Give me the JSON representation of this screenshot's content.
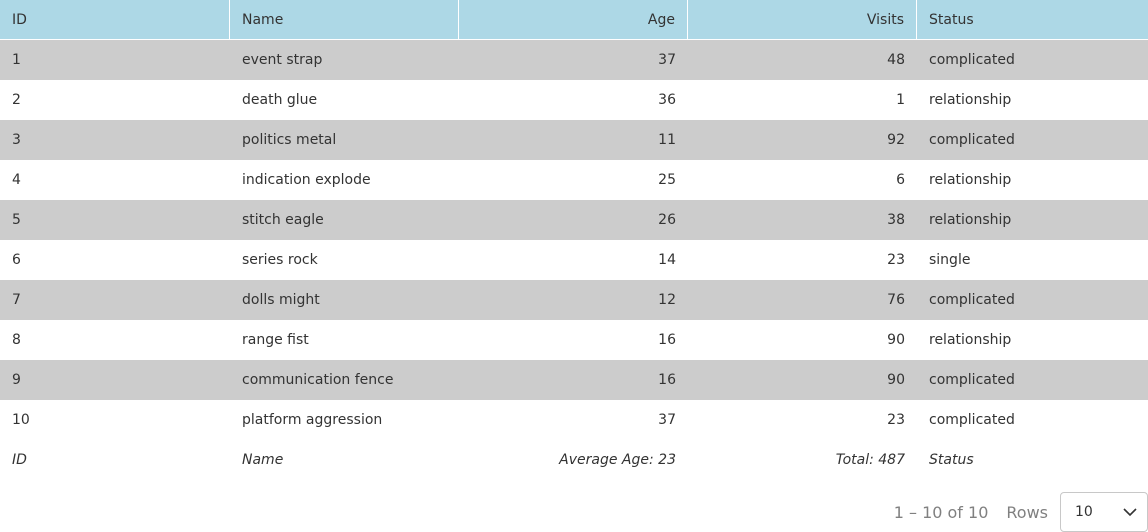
{
  "table": {
    "columns": [
      "ID",
      "Name",
      "Age",
      "Visits",
      "Status"
    ],
    "rows": [
      [
        "1",
        "event strap",
        "37",
        "48",
        "complicated"
      ],
      [
        "2",
        "death glue",
        "36",
        "1",
        "relationship"
      ],
      [
        "3",
        "politics metal",
        "11",
        "92",
        "complicated"
      ],
      [
        "4",
        "indication explode",
        "25",
        "6",
        "relationship"
      ],
      [
        "5",
        "stitch eagle",
        "26",
        "38",
        "relationship"
      ],
      [
        "6",
        "series rock",
        "14",
        "23",
        "single"
      ],
      [
        "7",
        "dolls might",
        "12",
        "76",
        "complicated"
      ],
      [
        "8",
        "range fist",
        "16",
        "90",
        "relationship"
      ],
      [
        "9",
        "communication fence",
        "16",
        "90",
        "complicated"
      ],
      [
        "10",
        "platform aggression",
        "37",
        "23",
        "complicated"
      ]
    ],
    "footer": [
      "ID",
      "Name",
      "Average Age: 23",
      "Total: 487",
      "Status"
    ]
  },
  "pagination": {
    "range": "1 – 10 of 10",
    "rows_label": "Rows",
    "rows_value": "10",
    "icon": "chevron-down-icon"
  },
  "colors": {
    "header_bg": "#add8e6",
    "odd_row_bg": "#cccccc",
    "even_row_bg": "#ffffff"
  }
}
